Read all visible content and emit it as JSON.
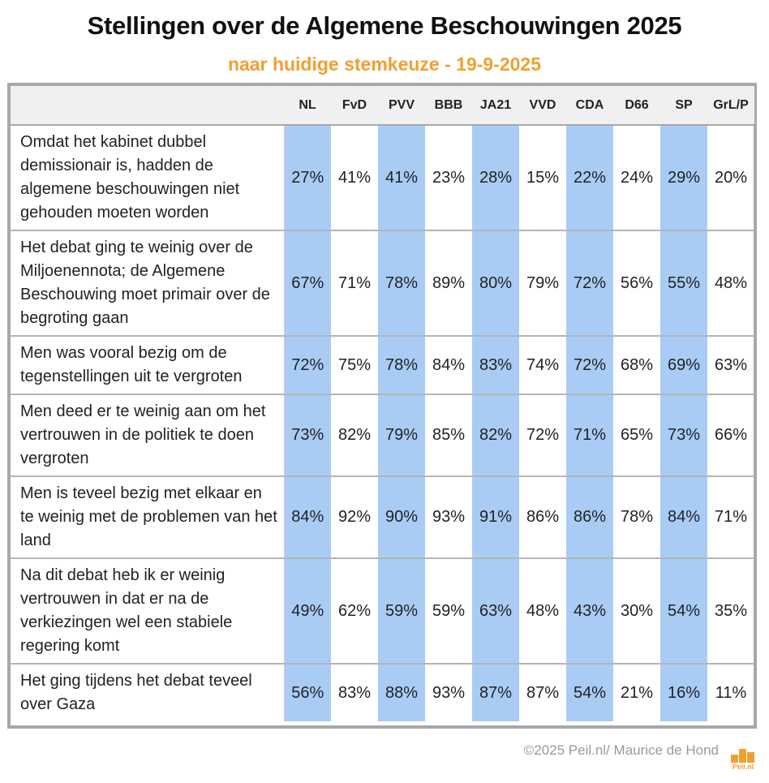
{
  "title": "Stellingen over de Algemene Beschouwingen 2025",
  "subtitle": "naar huidige stemkeuze - 19-9-2025",
  "footer": "©2025 Peil.nl/ Maurice de Hond",
  "logo_text": "Peil.nl",
  "colors": {
    "accent": "#f0a032",
    "highlight_column": "#a9ccf5",
    "border": "#a8a8a8"
  },
  "chart_data": {
    "type": "table",
    "columns": [
      "NL",
      "FvD",
      "PVV",
      "BBB",
      "JA21",
      "VVD",
      "CDA",
      "D66",
      "SP",
      "GrL/P"
    ],
    "highlighted_columns": [
      "NL",
      "PVV",
      "JA21",
      "CDA",
      "SP"
    ],
    "rows": [
      {
        "statement": "Omdat het kabinet dubbel demissionair is, hadden de algemene beschouwingen niet gehouden moeten worden",
        "values": [
          "27%",
          "41%",
          "41%",
          "23%",
          "28%",
          "15%",
          "22%",
          "24%",
          "29%",
          "20%"
        ]
      },
      {
        "statement": "Het debat ging te weinig over de Miljoenennota; de Algemene Beschouwing moet primair over de begroting gaan",
        "values": [
          "67%",
          "71%",
          "78%",
          "89%",
          "80%",
          "79%",
          "72%",
          "56%",
          "55%",
          "48%"
        ]
      },
      {
        "statement": "Men was vooral bezig om de tegenstellingen uit te vergroten",
        "values": [
          "72%",
          "75%",
          "78%",
          "84%",
          "83%",
          "74%",
          "72%",
          "68%",
          "69%",
          "63%"
        ]
      },
      {
        "statement": "Men deed er te weinig aan om het vertrouwen in de politiek te doen vergroten",
        "values": [
          "73%",
          "82%",
          "79%",
          "85%",
          "82%",
          "72%",
          "71%",
          "65%",
          "73%",
          "66%"
        ]
      },
      {
        "statement": "Men is teveel bezig met elkaar en te weinig met de problemen van het land",
        "values": [
          "84%",
          "92%",
          "90%",
          "93%",
          "91%",
          "86%",
          "86%",
          "78%",
          "84%",
          "71%"
        ]
      },
      {
        "statement": "Na dit debat heb ik er weinig vertrouwen in dat er na de verkiezingen wel een stabiele regering komt",
        "values": [
          "49%",
          "62%",
          "59%",
          "59%",
          "63%",
          "48%",
          "43%",
          "30%",
          "54%",
          "35%"
        ]
      },
      {
        "statement": "Het ging tijdens het debat teveel over Gaza",
        "values": [
          "56%",
          "83%",
          "88%",
          "93%",
          "87%",
          "87%",
          "54%",
          "21%",
          "16%",
          "11%"
        ]
      }
    ]
  }
}
